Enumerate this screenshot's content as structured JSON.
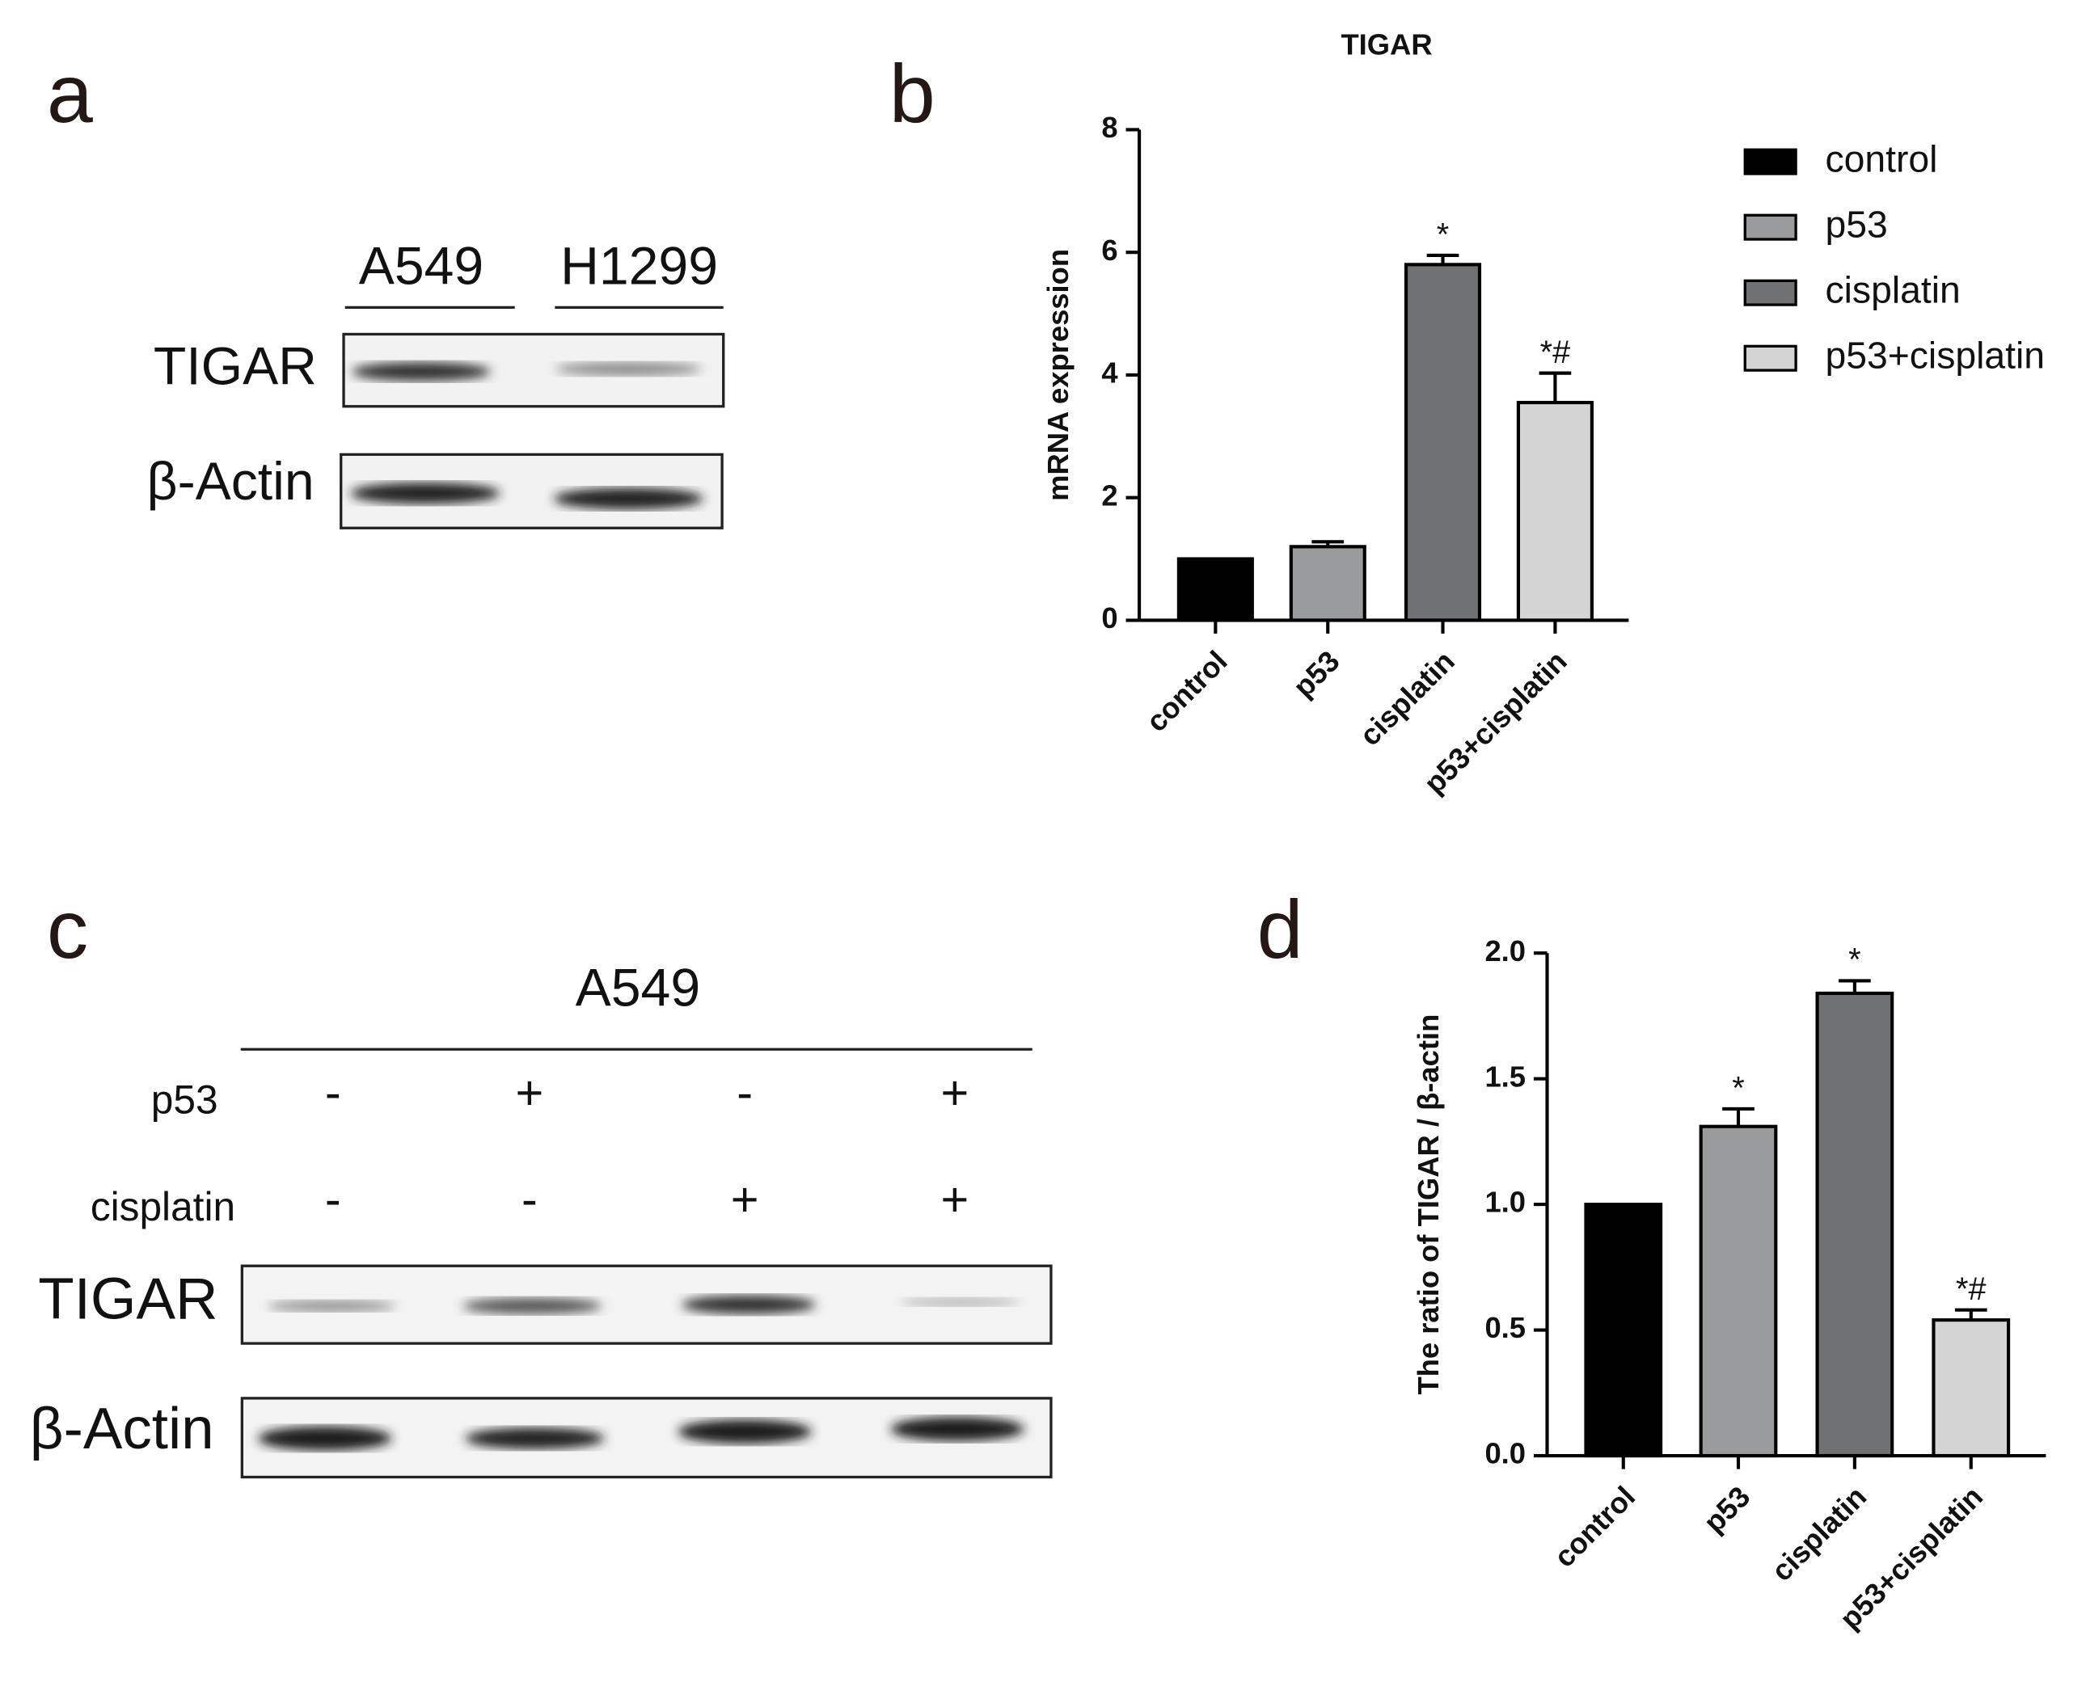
{
  "panels": [
    "a",
    "b",
    "c",
    "d"
  ],
  "blot_a": {
    "lanes": [
      "A549",
      "H1299"
    ],
    "rows": [
      "TIGAR",
      "β-Actin"
    ]
  },
  "blot_c": {
    "group": "A549",
    "conditions": [
      {
        "name": "p53",
        "signs": [
          "-",
          "+",
          "-",
          "+"
        ]
      },
      {
        "name": "cisplatin",
        "signs": [
          "-",
          "-",
          "+",
          "+"
        ]
      }
    ],
    "rows": [
      "TIGAR",
      "β-Actin"
    ]
  },
  "chart_data": [
    {
      "type": "bar",
      "title": "TIGAR",
      "y_label": "mRNA expression",
      "categories": [
        "control",
        "p53",
        "cisplatin",
        "p53+cisplatin"
      ],
      "values": [
        1.0,
        1.2,
        5.8,
        3.55
      ],
      "errors": [
        0,
        0.08,
        0.15,
        0.48
      ],
      "annotations": [
        null,
        null,
        "*",
        "*#"
      ],
      "colors": [
        "#000000",
        "#9a9b9d",
        "#707173",
        "#d4d4d4"
      ],
      "ylim": [
        0,
        8
      ],
      "yticks": [
        0,
        2,
        4,
        6,
        8
      ],
      "legend": "right"
    },
    {
      "type": "bar",
      "y_label": "The ratio of TIGAR / β-actin",
      "categories": [
        "control",
        "p53",
        "cisplatin",
        "p53+cisplatin"
      ],
      "values": [
        1.0,
        1.31,
        1.84,
        0.54
      ],
      "errors": [
        0,
        0.07,
        0.05,
        0.04
      ],
      "annotations": [
        null,
        "*",
        "*",
        "*#"
      ],
      "colors": [
        "#000000",
        "#9a9b9d",
        "#707173",
        "#d4d4d4"
      ],
      "ylim": [
        0,
        2
      ],
      "yticks": [
        {
          "value": 0,
          "label": "0.0"
        },
        {
          "value": 0.5,
          "label": "0.5"
        },
        {
          "value": 1,
          "label": "1.0"
        },
        {
          "value": 1.5,
          "label": "1.5"
        },
        {
          "value": 2,
          "label": "2.0"
        }
      ]
    }
  ]
}
